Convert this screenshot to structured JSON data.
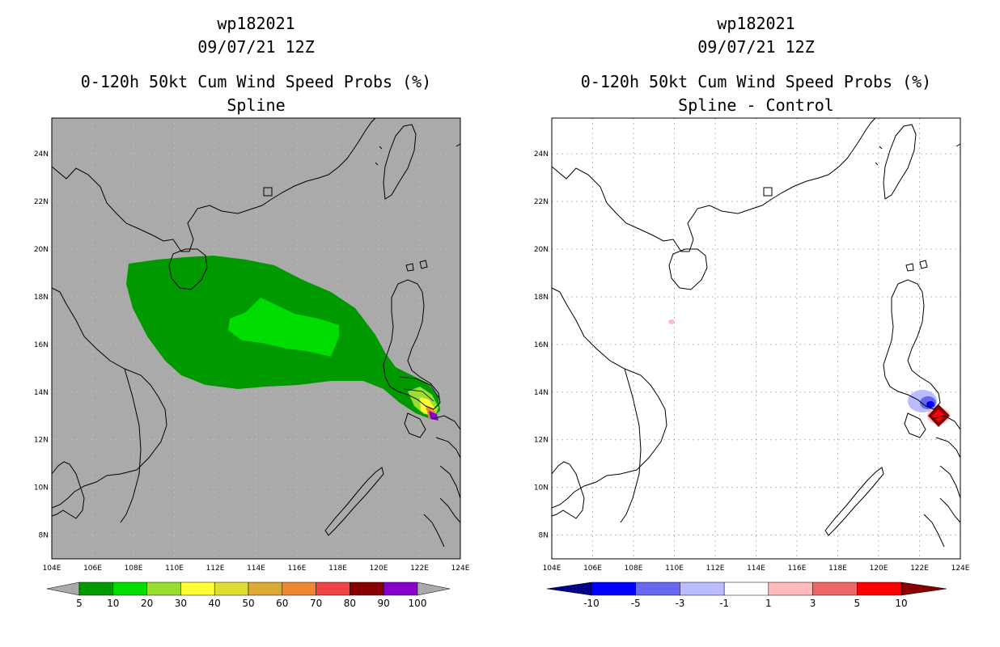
{
  "left_panel": {
    "title_line1": "wp182021",
    "title_line2": "09/07/21 12Z",
    "title_line3": "0-120h 50kt Cum Wind Speed Probs (%)",
    "title_line4": "Spline",
    "colorbar_labels": [
      "5",
      "10",
      "20",
      "30",
      "40",
      "50",
      "60",
      "70",
      "80",
      "90",
      "100"
    ],
    "colorbar_colors": [
      "#009900",
      "#00dd00",
      "#99dd33",
      "#ffff33",
      "#dddd33",
      "#ddaa33",
      "#ee8833",
      "#ee4444",
      "#880000",
      "#8800cc"
    ]
  },
  "right_panel": {
    "title_line1": "wp182021",
    "title_line2": "09/07/21 12Z",
    "title_line3": "0-120h 50kt Cum Wind Speed Probs (%)",
    "title_line4": "Spline - Control",
    "colorbar_labels": [
      "-10",
      "-5",
      "-3",
      "-1",
      "1",
      "3",
      "5",
      "10"
    ],
    "colorbar_colors": [
      "#0000ff",
      "#6666ee",
      "#bbbbff",
      "#ffffff",
      "#ffbbbb",
      "#ee6666",
      "#ff0000"
    ],
    "colorbar_end_low": "#000088",
    "colorbar_end_high": "#880000"
  },
  "axes": {
    "lon_labels": [
      "104E",
      "106E",
      "108E",
      "110E",
      "112E",
      "114E",
      "116E",
      "118E",
      "120E",
      "122E",
      "124E"
    ],
    "lat_labels": [
      "8N",
      "10N",
      "12N",
      "14N",
      "16N",
      "18N",
      "20N",
      "22N",
      "24N"
    ]
  },
  "colors": {
    "map_bg_left": "#aaaaaa",
    "map_bg_right": "#ffffff",
    "gridline": "#bbbbbb"
  }
}
